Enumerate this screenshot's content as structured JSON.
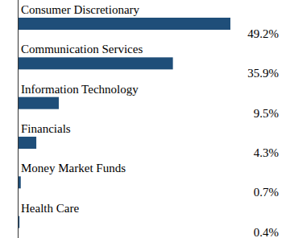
{
  "chart_data": {
    "type": "bar",
    "orientation": "horizontal",
    "categories": [
      "Consumer Discretionary",
      "Communication Services",
      "Information Technology",
      "Financials",
      "Money Market Funds",
      "Health Care"
    ],
    "values": [
      49.2,
      35.9,
      9.5,
      4.3,
      0.7,
      0.4
    ],
    "value_labels": [
      "49.2%",
      "35.9%",
      "9.5%",
      "4.3%",
      "0.7%",
      "0.4%"
    ],
    "color": "#1f4e79",
    "data_labels": true,
    "tick_labels": false,
    "grid": false
  }
}
